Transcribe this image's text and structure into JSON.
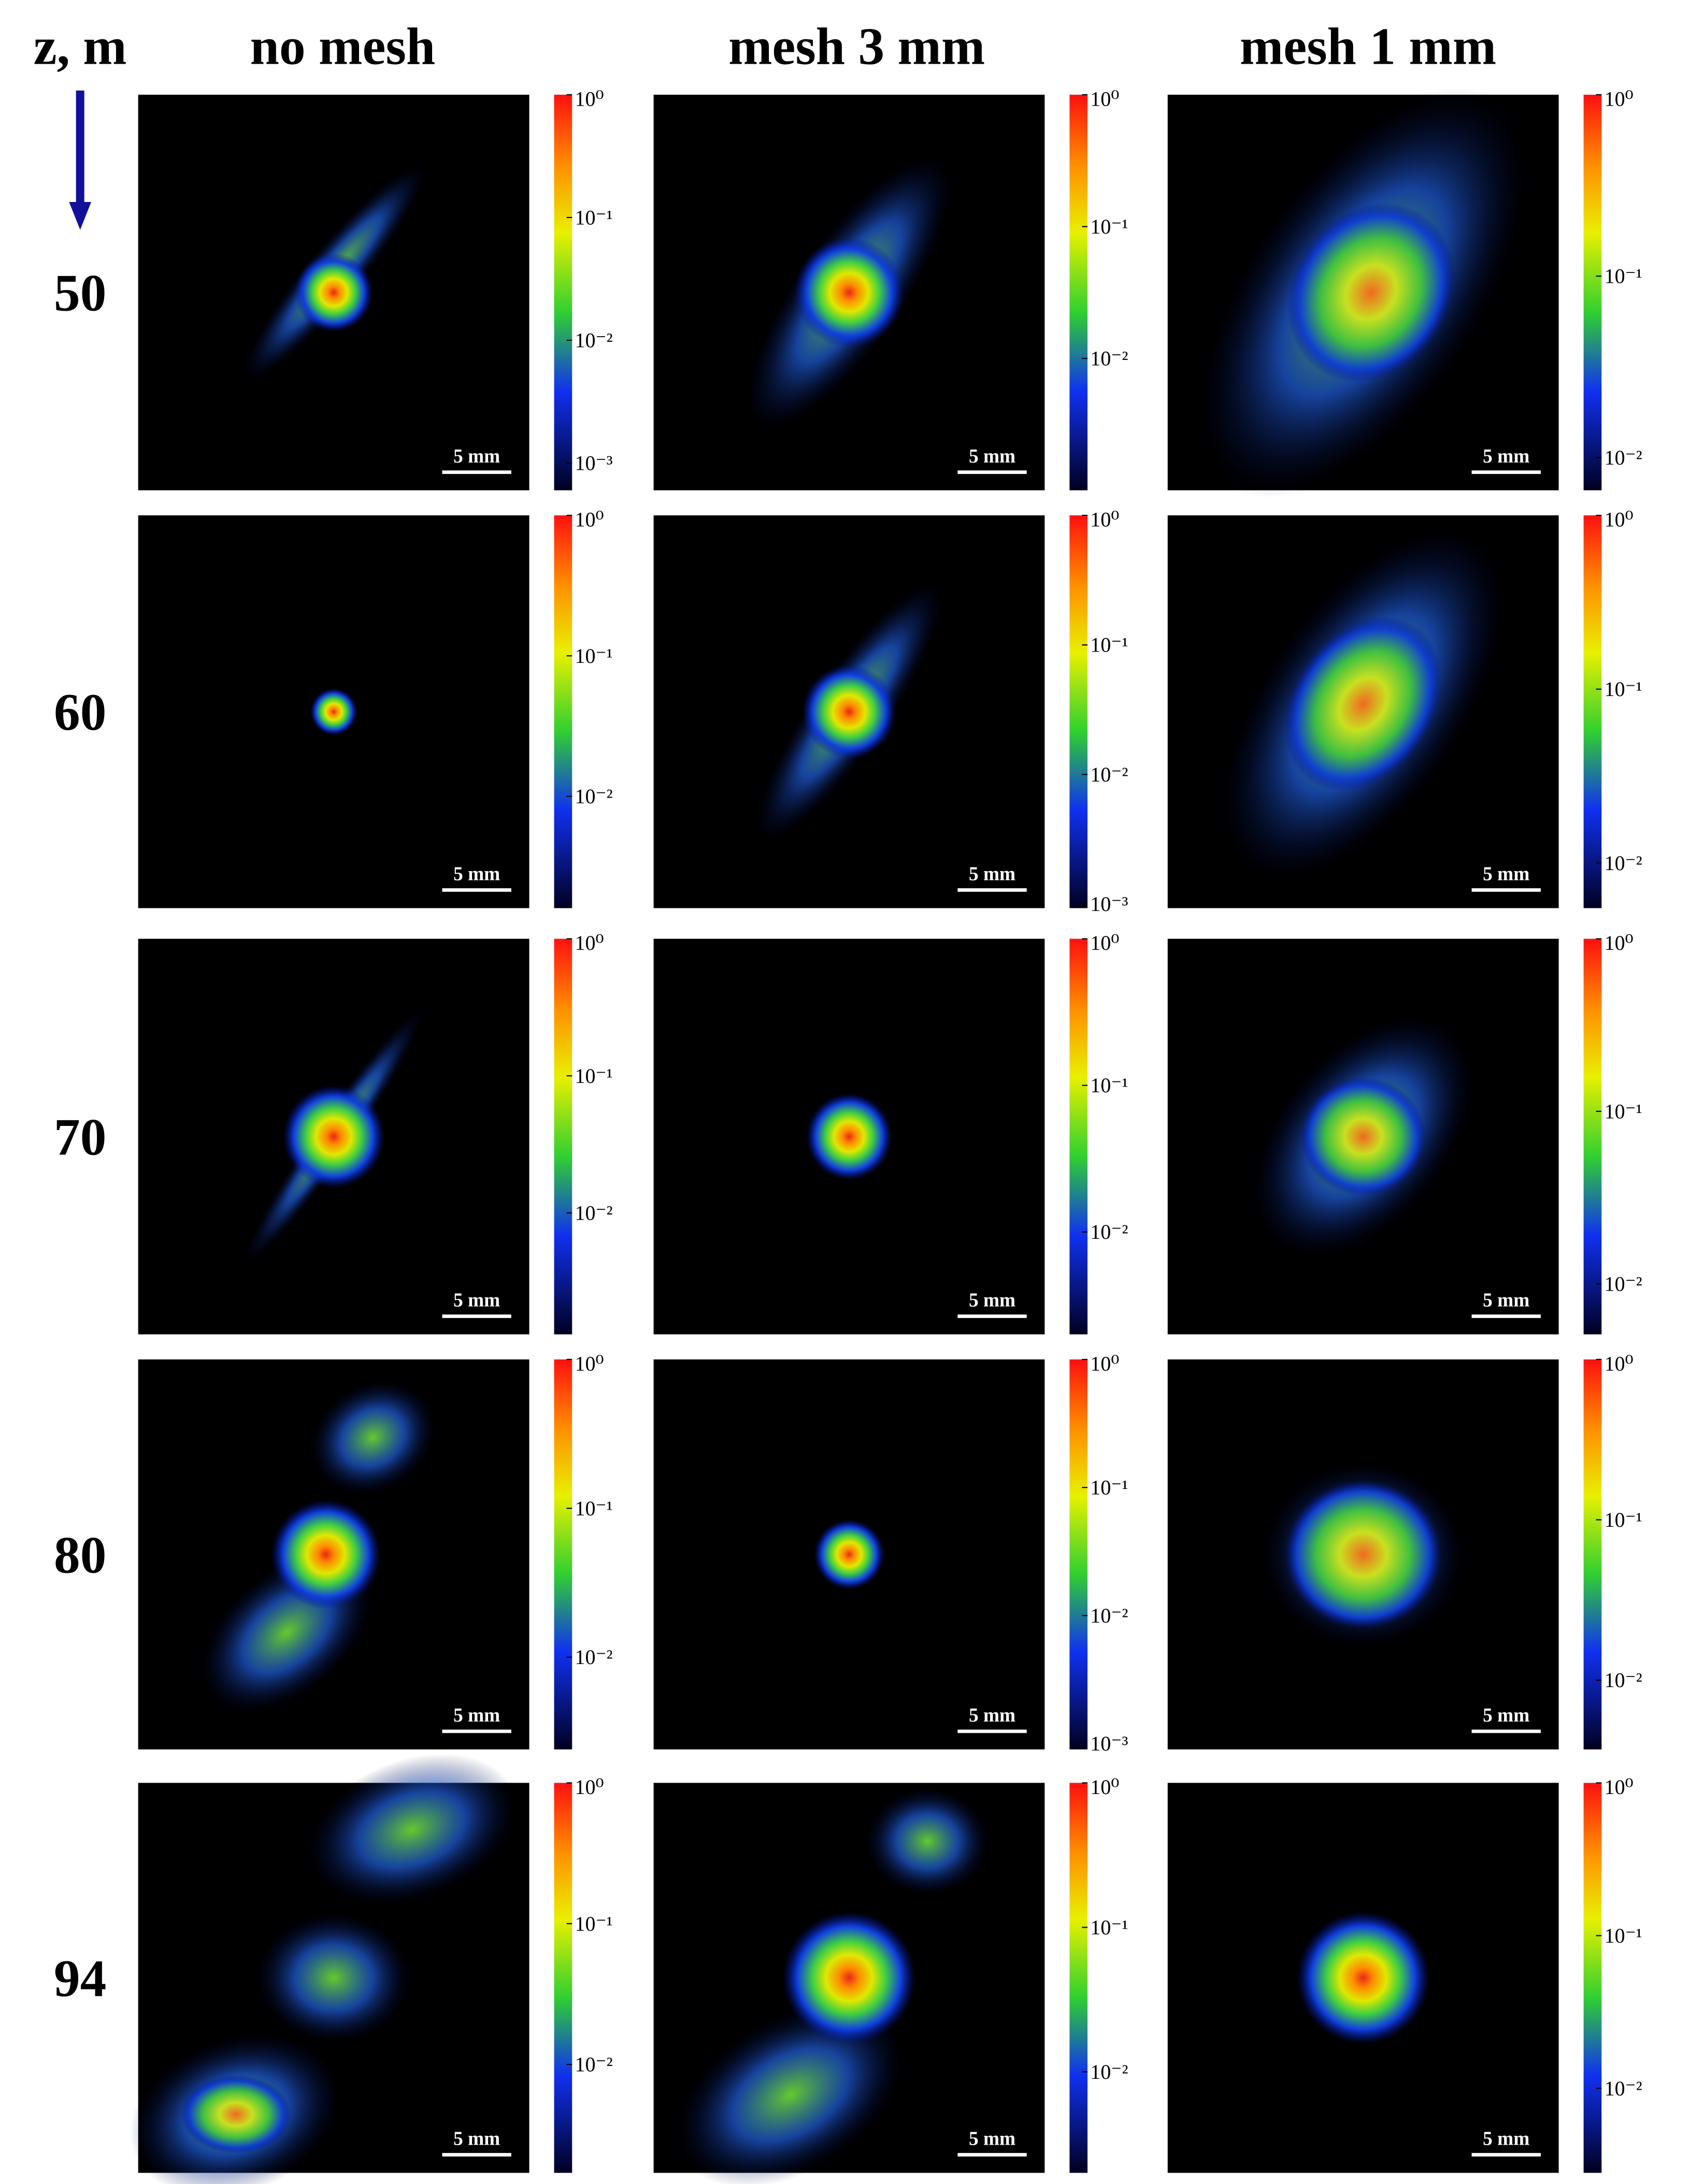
{
  "header": {
    "axis_label": "z, m",
    "columns": [
      "no mesh",
      "mesh 3 mm",
      "mesh 1 mm"
    ]
  },
  "rows": [
    {
      "z": 50,
      "panels": [
        {
          "scale_bar": "5 mm",
          "colorbar": {
            "clim": [
              0.0006,
              1
            ],
            "ticks": [
              {
                "value": 1,
                "label": "10⁰"
              },
              {
                "value": 0.1,
                "label": "10⁻¹"
              },
              {
                "value": 0.01,
                "label": "10⁻²"
              },
              {
                "value": 0.001,
                "label": "10⁻³"
              }
            ]
          }
        },
        {
          "scale_bar": "5 mm",
          "colorbar": {
            "clim": [
              0.001,
              1
            ],
            "ticks": [
              {
                "value": 1,
                "label": "10⁰"
              },
              {
                "value": 0.1,
                "label": "10⁻¹"
              },
              {
                "value": 0.01,
                "label": "10⁻²"
              }
            ]
          }
        },
        {
          "scale_bar": "5 mm",
          "colorbar": {
            "clim": [
              0.0066,
              1
            ],
            "ticks": [
              {
                "value": 1,
                "label": "10⁰"
              },
              {
                "value": 0.1,
                "label": "10⁻¹"
              },
              {
                "value": 0.01,
                "label": "10⁻²"
              }
            ]
          }
        }
      ]
    },
    {
      "z": 60,
      "panels": [
        {
          "scale_bar": "5 mm",
          "colorbar": {
            "clim": [
              0.0016,
              1
            ],
            "ticks": [
              {
                "value": 1,
                "label": "10⁰"
              },
              {
                "value": 0.1,
                "label": "10⁻¹"
              },
              {
                "value": 0.01,
                "label": "10⁻²"
              }
            ]
          }
        },
        {
          "scale_bar": "5 mm",
          "colorbar": {
            "clim": [
              0.00093,
              1
            ],
            "ticks": [
              {
                "value": 1,
                "label": "10⁰"
              },
              {
                "value": 0.1,
                "label": "10⁻¹"
              },
              {
                "value": 0.01,
                "label": "10⁻²"
              },
              {
                "value": 0.001,
                "label": "10⁻³"
              }
            ]
          }
        },
        {
          "scale_bar": "5 mm",
          "colorbar": {
            "clim": [
              0.0055,
              1
            ],
            "ticks": [
              {
                "value": 1,
                "label": "10⁰"
              },
              {
                "value": 0.1,
                "label": "10⁻¹"
              },
              {
                "value": 0.01,
                "label": "10⁻²"
              }
            ]
          }
        }
      ]
    },
    {
      "z": 70,
      "panels": [
        {
          "scale_bar": "5 mm",
          "colorbar": {
            "clim": [
              0.0013,
              1
            ],
            "ticks": [
              {
                "value": 1,
                "label": "10⁰"
              },
              {
                "value": 0.1,
                "label": "10⁻¹"
              },
              {
                "value": 0.01,
                "label": "10⁻²"
              }
            ]
          }
        },
        {
          "scale_bar": "5 mm",
          "colorbar": {
            "clim": [
              0.002,
              1
            ],
            "ticks": [
              {
                "value": 1,
                "label": "10⁰"
              },
              {
                "value": 0.1,
                "label": "10⁻¹"
              },
              {
                "value": 0.01,
                "label": "10⁻²"
              }
            ]
          }
        },
        {
          "scale_bar": "5 mm",
          "colorbar": {
            "clim": [
              0.0051,
              1
            ],
            "ticks": [
              {
                "value": 1,
                "label": "10⁰"
              },
              {
                "value": 0.1,
                "label": "10⁻¹"
              },
              {
                "value": 0.01,
                "label": "10⁻²"
              }
            ]
          }
        }
      ]
    },
    {
      "z": 80,
      "panels": [
        {
          "scale_bar": "5 mm",
          "colorbar": {
            "clim": [
              0.0024,
              1
            ],
            "ticks": [
              {
                "value": 1,
                "label": "10⁰"
              },
              {
                "value": 0.1,
                "label": "10⁻¹"
              },
              {
                "value": 0.01,
                "label": "10⁻²"
              }
            ]
          }
        },
        {
          "scale_bar": "5 mm",
          "colorbar": {
            "clim": [
              0.0009,
              1
            ],
            "ticks": [
              {
                "value": 1,
                "label": "10⁰"
              },
              {
                "value": 0.1,
                "label": "10⁻¹"
              },
              {
                "value": 0.01,
                "label": "10⁻²"
              },
              {
                "value": 0.001,
                "label": "10⁻³"
              }
            ]
          }
        },
        {
          "scale_bar": "5 mm",
          "colorbar": {
            "clim": [
              0.0037,
              1
            ],
            "ticks": [
              {
                "value": 1,
                "label": "10⁰"
              },
              {
                "value": 0.1,
                "label": "10⁻¹"
              },
              {
                "value": 0.01,
                "label": "10⁻²"
              }
            ]
          }
        }
      ]
    },
    {
      "z": 94,
      "panels": [
        {
          "scale_bar": "5 mm",
          "colorbar": {
            "clim": [
              0.0017,
              1
            ],
            "ticks": [
              {
                "value": 1,
                "label": "10⁰"
              },
              {
                "value": 0.1,
                "label": "10⁻¹"
              },
              {
                "value": 0.01,
                "label": "10⁻²"
              }
            ]
          }
        },
        {
          "scale_bar": "5 mm",
          "colorbar": {
            "clim": [
              0.002,
              1
            ],
            "ticks": [
              {
                "value": 1,
                "label": "10⁰"
              },
              {
                "value": 0.1,
                "label": "10⁻¹"
              },
              {
                "value": 0.01,
                "label": "10⁻²"
              }
            ]
          }
        },
        {
          "scale_bar": "5 mm",
          "colorbar": {
            "clim": [
              0.0028,
              1
            ],
            "ticks": [
              {
                "value": 1,
                "label": "10⁰"
              },
              {
                "value": 0.1,
                "label": "10⁻¹"
              },
              {
                "value": 0.01,
                "label": "10⁻²"
              }
            ]
          }
        }
      ]
    }
  ]
}
